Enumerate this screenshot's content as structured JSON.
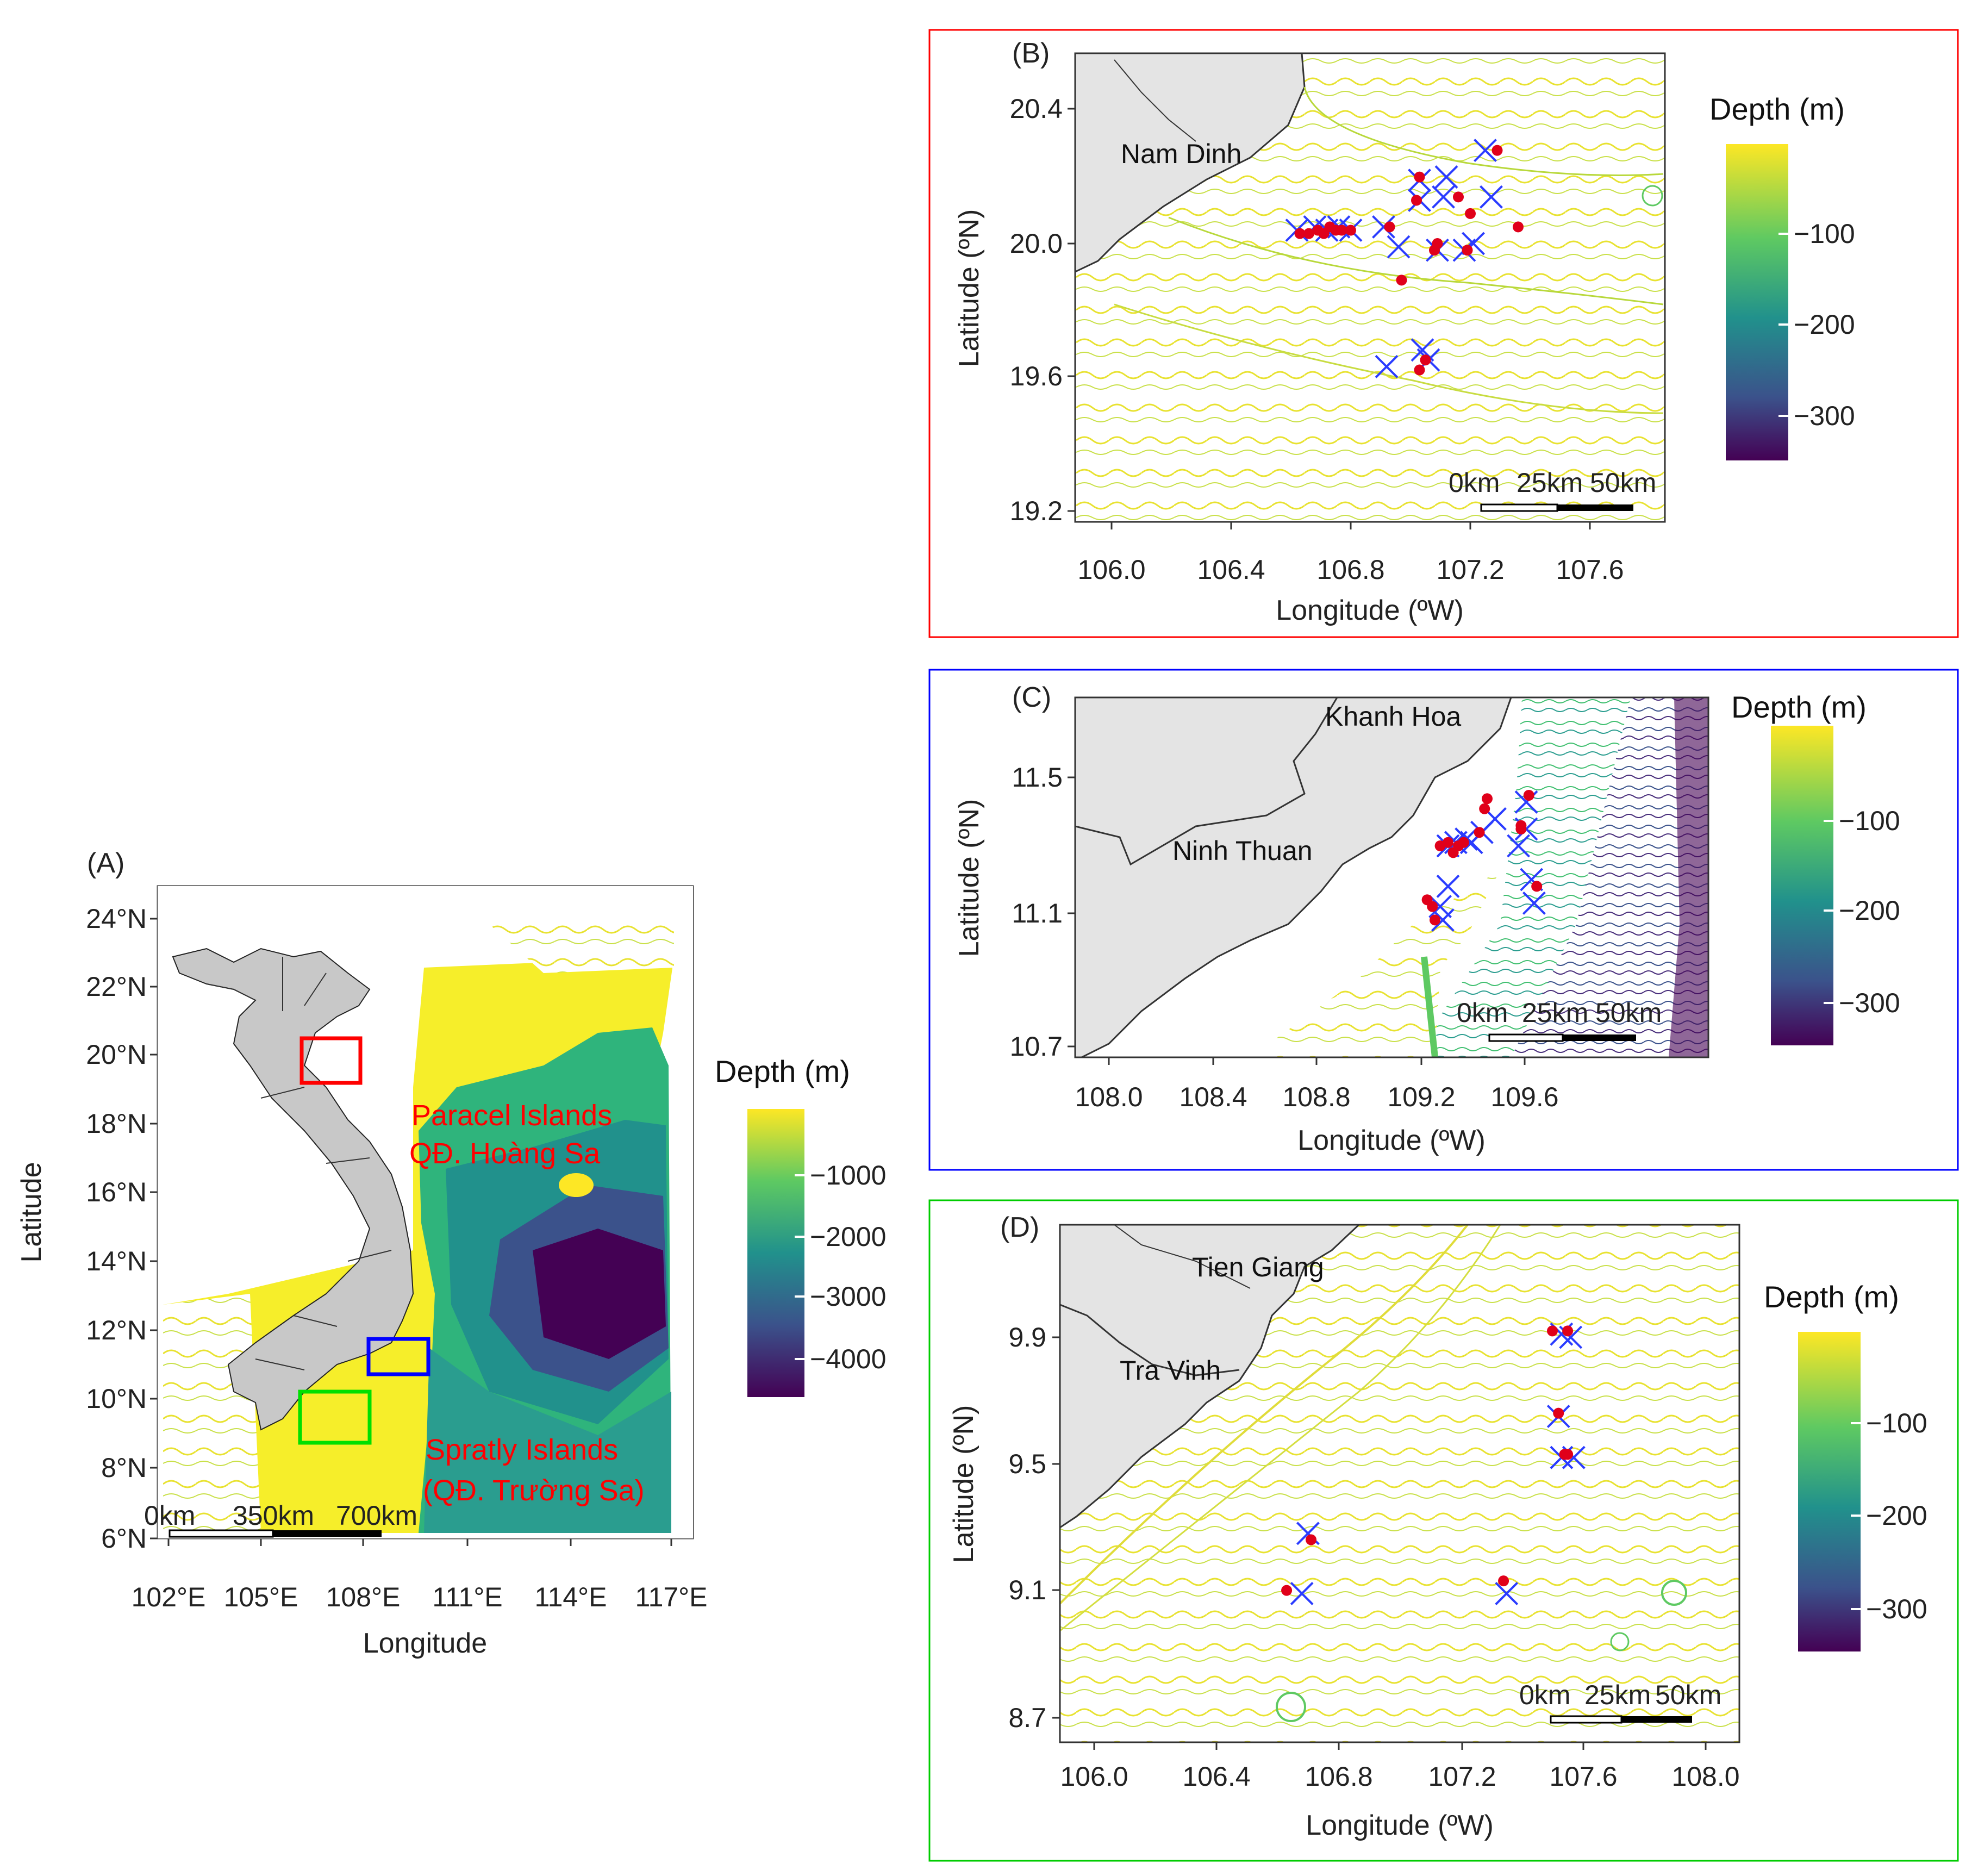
{
  "figure": {
    "panel_a": {
      "label": "(A)",
      "xlabel": "Longitude",
      "ylabel": "Latitude",
      "x_ticks": [
        "102°E",
        "105°E",
        "108°E",
        "111°E",
        "114°E",
        "117°E"
      ],
      "y_ticks": [
        "24°N",
        "22°N",
        "20°N",
        "18°N",
        "16°N",
        "14°N",
        "12°N",
        "10°N",
        "8°N",
        "6°N"
      ],
      "annotations": [
        "Paracel Islands",
        "QĐ. Hoàng Sa",
        "Spratly Islands",
        "(QĐ. Trường Sa)"
      ],
      "annotation_color": "#ff0000",
      "scalebar": [
        "0km",
        "350km",
        "700km"
      ],
      "legend_title": "Depth (m)",
      "legend_ticks": [
        "−1000",
        "−2000",
        "−3000",
        "−4000"
      ],
      "study_boxes": [
        {
          "name": "B",
          "color": "#ff0000"
        },
        {
          "name": "C",
          "color": "#0000ff"
        },
        {
          "name": "D",
          "color": "#00e000"
        }
      ]
    },
    "panel_b": {
      "label": "(B)",
      "frame_color": "#ff0000",
      "xlabel": "Longitude (ºW)",
      "ylabel": "Latitude (ºN)",
      "x_ticks": [
        "106.0",
        "106.4",
        "106.8",
        "107.2",
        "107.6"
      ],
      "y_ticks": [
        "20.4",
        "20.0",
        "19.6",
        "19.2"
      ],
      "place": "Nam Dinh",
      "scalebar": [
        "0km",
        "25km",
        "50km"
      ],
      "legend_title": "Depth (m)",
      "legend_ticks": [
        "−100",
        "−200",
        "−300"
      ]
    },
    "panel_c": {
      "label": "(C)",
      "frame_color": "#0000ff",
      "xlabel": "Longitude (ºW)",
      "ylabel": "Latitude (ºN)",
      "x_ticks": [
        "108.0",
        "108.4",
        "108.8",
        "109.2",
        "109.6"
      ],
      "y_ticks": [
        "11.5",
        "11.1",
        "10.7"
      ],
      "places": [
        "Khanh Hoa",
        "Ninh Thuan"
      ],
      "scalebar": [
        "0km",
        "25km",
        "50km"
      ],
      "legend_title": "Depth (m)",
      "legend_ticks": [
        "−100",
        "−200",
        "−300"
      ]
    },
    "panel_d": {
      "label": "(D)",
      "frame_color": "#00cc00",
      "xlabel": "Longitude (ºW)",
      "ylabel": "Latitude (ºN)",
      "x_ticks": [
        "106.0",
        "106.4",
        "106.8",
        "107.2",
        "107.6",
        "108.0"
      ],
      "y_ticks": [
        "9.9",
        "9.5",
        "9.1",
        "8.7"
      ],
      "places": [
        "Tien Giang",
        "Tra Vinh"
      ],
      "scalebar": [
        "0km",
        "25km",
        "50km"
      ],
      "legend_title": "Depth (m)",
      "legend_ticks": [
        "−100",
        "−200",
        "−300"
      ]
    },
    "marker_colors": {
      "observed": "#e0001a",
      "predicted": "#2a3cff"
    },
    "points": {
      "b_red": [
        [
          106.63,
          20.03
        ],
        [
          106.66,
          20.03
        ],
        [
          106.69,
          20.04
        ],
        [
          106.71,
          20.03
        ],
        [
          106.73,
          20.05
        ],
        [
          106.75,
          20.04
        ],
        [
          106.77,
          20.04
        ],
        [
          106.8,
          20.04
        ],
        [
          106.93,
          20.05
        ],
        [
          106.97,
          19.89
        ],
        [
          107.02,
          20.13
        ],
        [
          107.03,
          20.2
        ],
        [
          107.08,
          19.98
        ],
        [
          107.09,
          20.0
        ],
        [
          107.16,
          20.14
        ],
        [
          107.19,
          19.98
        ],
        [
          107.2,
          20.09
        ],
        [
          107.29,
          20.28
        ],
        [
          107.36,
          20.05
        ],
        [
          107.03,
          19.62
        ],
        [
          107.05,
          19.65
        ]
      ],
      "b_blue": [
        [
          106.62,
          20.04
        ],
        [
          106.68,
          20.05
        ],
        [
          106.72,
          20.04
        ],
        [
          106.76,
          20.05
        ],
        [
          106.8,
          20.04
        ],
        [
          106.91,
          20.05
        ],
        [
          106.96,
          19.99
        ],
        [
          107.03,
          20.13
        ],
        [
          107.03,
          20.19
        ],
        [
          107.09,
          19.98
        ],
        [
          107.11,
          20.14
        ],
        [
          107.12,
          20.2
        ],
        [
          107.18,
          19.98
        ],
        [
          107.21,
          20.0
        ],
        [
          107.25,
          20.28
        ],
        [
          107.27,
          20.14
        ],
        [
          107.04,
          19.68
        ],
        [
          106.92,
          19.63
        ],
        [
          107.06,
          19.65
        ]
      ],
      "c_red": [
        [
          109.27,
          11.3
        ],
        [
          109.3,
          11.31
        ],
        [
          109.32,
          11.28
        ],
        [
          109.34,
          11.3
        ],
        [
          109.36,
          11.31
        ],
        [
          109.42,
          11.34
        ],
        [
          109.44,
          11.41
        ],
        [
          109.45,
          11.44
        ],
        [
          109.58,
          11.35
        ],
        [
          109.58,
          11.36
        ],
        [
          109.61,
          11.45
        ],
        [
          109.64,
          11.18
        ],
        [
          109.22,
          11.14
        ],
        [
          109.24,
          11.12
        ],
        [
          109.25,
          11.08
        ]
      ],
      "c_blue": [
        [
          109.3,
          11.3
        ],
        [
          109.33,
          11.31
        ],
        [
          109.37,
          11.32
        ],
        [
          109.43,
          11.34
        ],
        [
          109.48,
          11.38
        ],
        [
          109.57,
          11.3
        ],
        [
          109.6,
          11.35
        ],
        [
          109.6,
          11.43
        ],
        [
          109.63,
          11.13
        ],
        [
          109.3,
          11.18
        ],
        [
          109.28,
          11.08
        ],
        [
          109.27,
          11.12
        ],
        [
          109.39,
          11.31
        ],
        [
          109.62,
          11.2
        ]
      ],
      "d_red": [
        [
          107.5,
          9.92
        ],
        [
          107.55,
          9.92
        ],
        [
          107.52,
          9.66
        ],
        [
          107.54,
          9.53
        ],
        [
          107.55,
          9.53
        ],
        [
          106.71,
          9.26
        ],
        [
          106.63,
          9.1
        ],
        [
          107.34,
          9.13
        ]
      ],
      "d_blue": [
        [
          107.53,
          9.91
        ],
        [
          107.56,
          9.9
        ],
        [
          107.52,
          9.65
        ],
        [
          107.53,
          9.52
        ],
        [
          107.57,
          9.52
        ],
        [
          106.7,
          9.28
        ],
        [
          106.68,
          9.09
        ],
        [
          107.35,
          9.09
        ]
      ]
    }
  }
}
